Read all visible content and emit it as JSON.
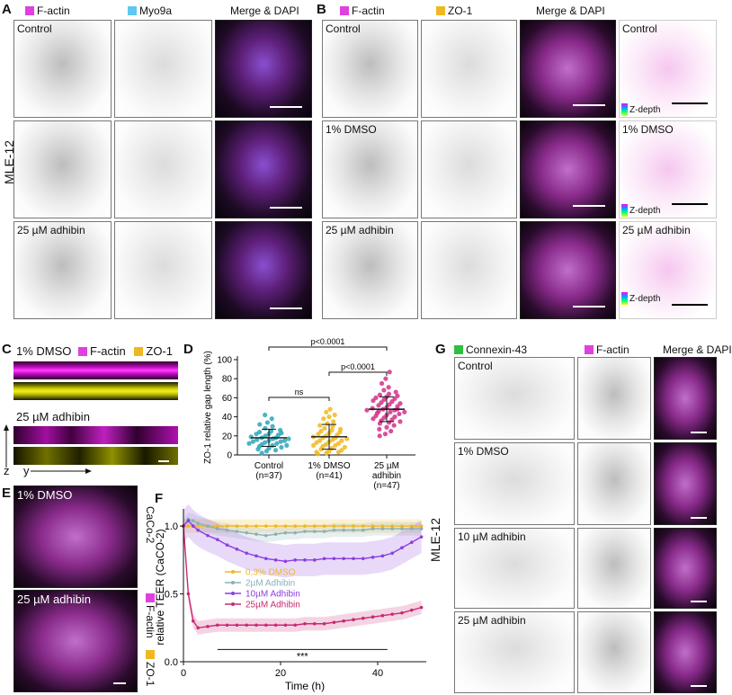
{
  "panels": {
    "A": {
      "label": "A",
      "headers": [
        {
          "text": "F-actin",
          "color": "#e040e0"
        },
        {
          "text": "Myo9a",
          "color": "#60c8f0"
        },
        {
          "text": "Merge & DAPI"
        }
      ],
      "rows": [
        "Control",
        "",
        "25 µM adhibin"
      ],
      "side_label": "MLE-12"
    },
    "B": {
      "label": "B",
      "headers": [
        {
          "text": "F-actin",
          "color": "#e040e0"
        },
        {
          "text": "ZO-1",
          "color": "#f0b820"
        },
        {
          "text": "Merge & DAPI"
        }
      ],
      "rows": [
        "Control",
        "1% DMSO",
        "25 µM adhibin"
      ],
      "zdepth_rows": [
        "Control",
        "1% DMSO",
        "25 µM adhibin"
      ],
      "zdepth_label": "Z-depth"
    },
    "C": {
      "label": "C",
      "title_condition": "1% DMSO",
      "legend": [
        {
          "text": "F-actin",
          "color": "#e040e0"
        },
        {
          "text": "ZO-1",
          "color": "#f0b820"
        }
      ],
      "second_condition": "25 µM adhibin",
      "z_axis": "z",
      "y_axis": "y"
    },
    "D": {
      "label": "D"
    },
    "E": {
      "label": "E",
      "top_condition": "1% DMSO",
      "bottom_condition": "25 µM adhibin",
      "cell_line": "CaCo-2",
      "legend": [
        {
          "text": "F-actin",
          "color": "#e040e0"
        },
        {
          "text": "ZO-1",
          "color": "#f0b820"
        }
      ]
    },
    "F": {
      "label": "F"
    },
    "G": {
      "label": "G",
      "headers": [
        {
          "text": "Connexin-43",
          "color": "#30c040"
        },
        {
          "text": "F-actin",
          "color": "#e040e0"
        },
        {
          "text": "Merge & DAPI"
        }
      ],
      "rows": [
        "Control",
        "1% DMSO",
        "10 µM adhibin",
        "25 µM adhibin"
      ],
      "side_label": "MLE-12"
    }
  },
  "chart_data": [
    {
      "type": "scatter",
      "panel": "D",
      "ylabel": "ZO-1 relative gap length (%)",
      "ylim": [
        0,
        100
      ],
      "yticks": [
        0,
        20,
        40,
        60,
        80,
        100
      ],
      "categories": [
        "Control\n(n=37)",
        "1% DMSO\n(n=41)",
        "25 µM\nadhibin\n(n=47)"
      ],
      "category_lines": [
        [
          "Control",
          "(n=37)"
        ],
        [
          "1% DMSO",
          "(n=41)"
        ],
        [
          "25 µM",
          "adhibin",
          "(n=47)"
        ]
      ],
      "series": [
        {
          "name": "Control",
          "color": "#2aa7b8",
          "mean": 18,
          "sd": 9,
          "values": [
            2,
            4,
            5,
            6,
            7,
            8,
            9,
            10,
            10,
            11,
            12,
            12,
            13,
            14,
            14,
            15,
            15,
            16,
            17,
            17,
            18,
            18,
            19,
            20,
            21,
            22,
            22,
            23,
            24,
            25,
            26,
            28,
            30,
            32,
            34,
            38,
            42
          ]
        },
        {
          "name": "1% DMSO",
          "color": "#f0b820",
          "mean": 19,
          "sd": 13,
          "values": [
            1,
            2,
            3,
            3,
            4,
            5,
            6,
            7,
            8,
            9,
            10,
            10,
            11,
            12,
            13,
            14,
            15,
            15,
            16,
            17,
            18,
            18,
            19,
            20,
            21,
            22,
            23,
            24,
            25,
            26,
            27,
            28,
            30,
            31,
            33,
            35,
            38,
            40,
            42,
            45,
            48
          ]
        },
        {
          "name": "25 µM adhibin",
          "color": "#d4308a",
          "mean": 48,
          "sd": 13,
          "values": [
            20,
            22,
            25,
            27,
            29,
            31,
            33,
            34,
            35,
            36,
            37,
            38,
            39,
            40,
            41,
            42,
            43,
            44,
            45,
            45,
            46,
            47,
            47,
            48,
            48,
            49,
            50,
            51,
            52,
            53,
            54,
            55,
            56,
            57,
            58,
            59,
            60,
            61,
            62,
            63,
            64,
            66,
            68,
            71,
            75,
            80,
            87
          ]
        }
      ],
      "significance": [
        {
          "from": 0,
          "to": 1,
          "text": "ns"
        },
        {
          "from": 1,
          "to": 2,
          "text": "p<0.0001"
        },
        {
          "from": 0,
          "to": 2,
          "text": "p<0.0001"
        }
      ]
    },
    {
      "type": "line",
      "panel": "F",
      "xlabel": "Time (h)",
      "ylabel": "relative TEER (CaCO-2)",
      "xlim": [
        0,
        50
      ],
      "ylim": [
        0,
        1.1
      ],
      "xticks": [
        0,
        20,
        40
      ],
      "yticks": [
        0,
        0.5,
        1.0
      ],
      "annotation": "***",
      "annotation_span": [
        7,
        42
      ],
      "series": [
        {
          "name": "0,3% DMSO",
          "color": "#f0b820",
          "x": [
            0,
            1,
            2,
            3,
            5,
            7,
            9,
            11,
            13,
            15,
            17,
            19,
            21,
            23,
            25,
            27,
            29,
            31,
            33,
            35,
            37,
            39,
            41,
            43,
            45,
            47,
            49
          ],
          "y": [
            1.0,
            1.0,
            1.0,
            1.0,
            1.0,
            1.0,
            1.0,
            1.0,
            1.0,
            1.0,
            1.0,
            1.0,
            1.0,
            1.0,
            1.0,
            1.0,
            1.0,
            1.0,
            1.0,
            1.0,
            1.0,
            1.0,
            1.0,
            1.0,
            1.0,
            1.0,
            1.0
          ],
          "band": 0.05
        },
        {
          "name": "2µM Adhibin",
          "color": "#8ab0b8",
          "x": [
            0,
            1,
            2,
            3,
            5,
            7,
            9,
            11,
            13,
            15,
            17,
            19,
            21,
            23,
            25,
            27,
            29,
            31,
            33,
            35,
            37,
            39,
            41,
            43,
            45,
            47,
            49
          ],
          "y": [
            1.0,
            1.05,
            1.04,
            1.02,
            1.0,
            0.98,
            0.97,
            0.96,
            0.95,
            0.94,
            0.93,
            0.94,
            0.95,
            0.95,
            0.96,
            0.96,
            0.96,
            0.97,
            0.97,
            0.97,
            0.97,
            0.98,
            0.98,
            0.98,
            0.98,
            0.98,
            0.98
          ],
          "band": 0.05
        },
        {
          "name": "10µM Adhibin",
          "color": "#8a3fe0",
          "x": [
            0,
            1,
            2,
            3,
            5,
            7,
            9,
            11,
            13,
            15,
            17,
            19,
            21,
            23,
            25,
            27,
            29,
            31,
            33,
            35,
            37,
            39,
            41,
            43,
            45,
            47,
            49
          ],
          "y": [
            1.0,
            1.04,
            1.0,
            0.97,
            0.93,
            0.9,
            0.86,
            0.83,
            0.8,
            0.78,
            0.76,
            0.75,
            0.74,
            0.75,
            0.75,
            0.75,
            0.76,
            0.76,
            0.76,
            0.76,
            0.76,
            0.77,
            0.78,
            0.8,
            0.84,
            0.88,
            0.92
          ],
          "band": 0.12
        },
        {
          "name": "25µM Adhibin",
          "color": "#c82a72",
          "x": [
            0,
            1,
            2,
            3,
            5,
            7,
            9,
            11,
            13,
            15,
            17,
            19,
            21,
            23,
            25,
            27,
            29,
            31,
            33,
            35,
            37,
            39,
            41,
            43,
            45,
            47,
            49
          ],
          "y": [
            1.0,
            0.5,
            0.3,
            0.25,
            0.26,
            0.27,
            0.27,
            0.27,
            0.27,
            0.27,
            0.27,
            0.27,
            0.27,
            0.27,
            0.28,
            0.28,
            0.28,
            0.29,
            0.3,
            0.31,
            0.32,
            0.33,
            0.34,
            0.35,
            0.36,
            0.38,
            0.4
          ],
          "band": 0.05
        }
      ]
    }
  ]
}
